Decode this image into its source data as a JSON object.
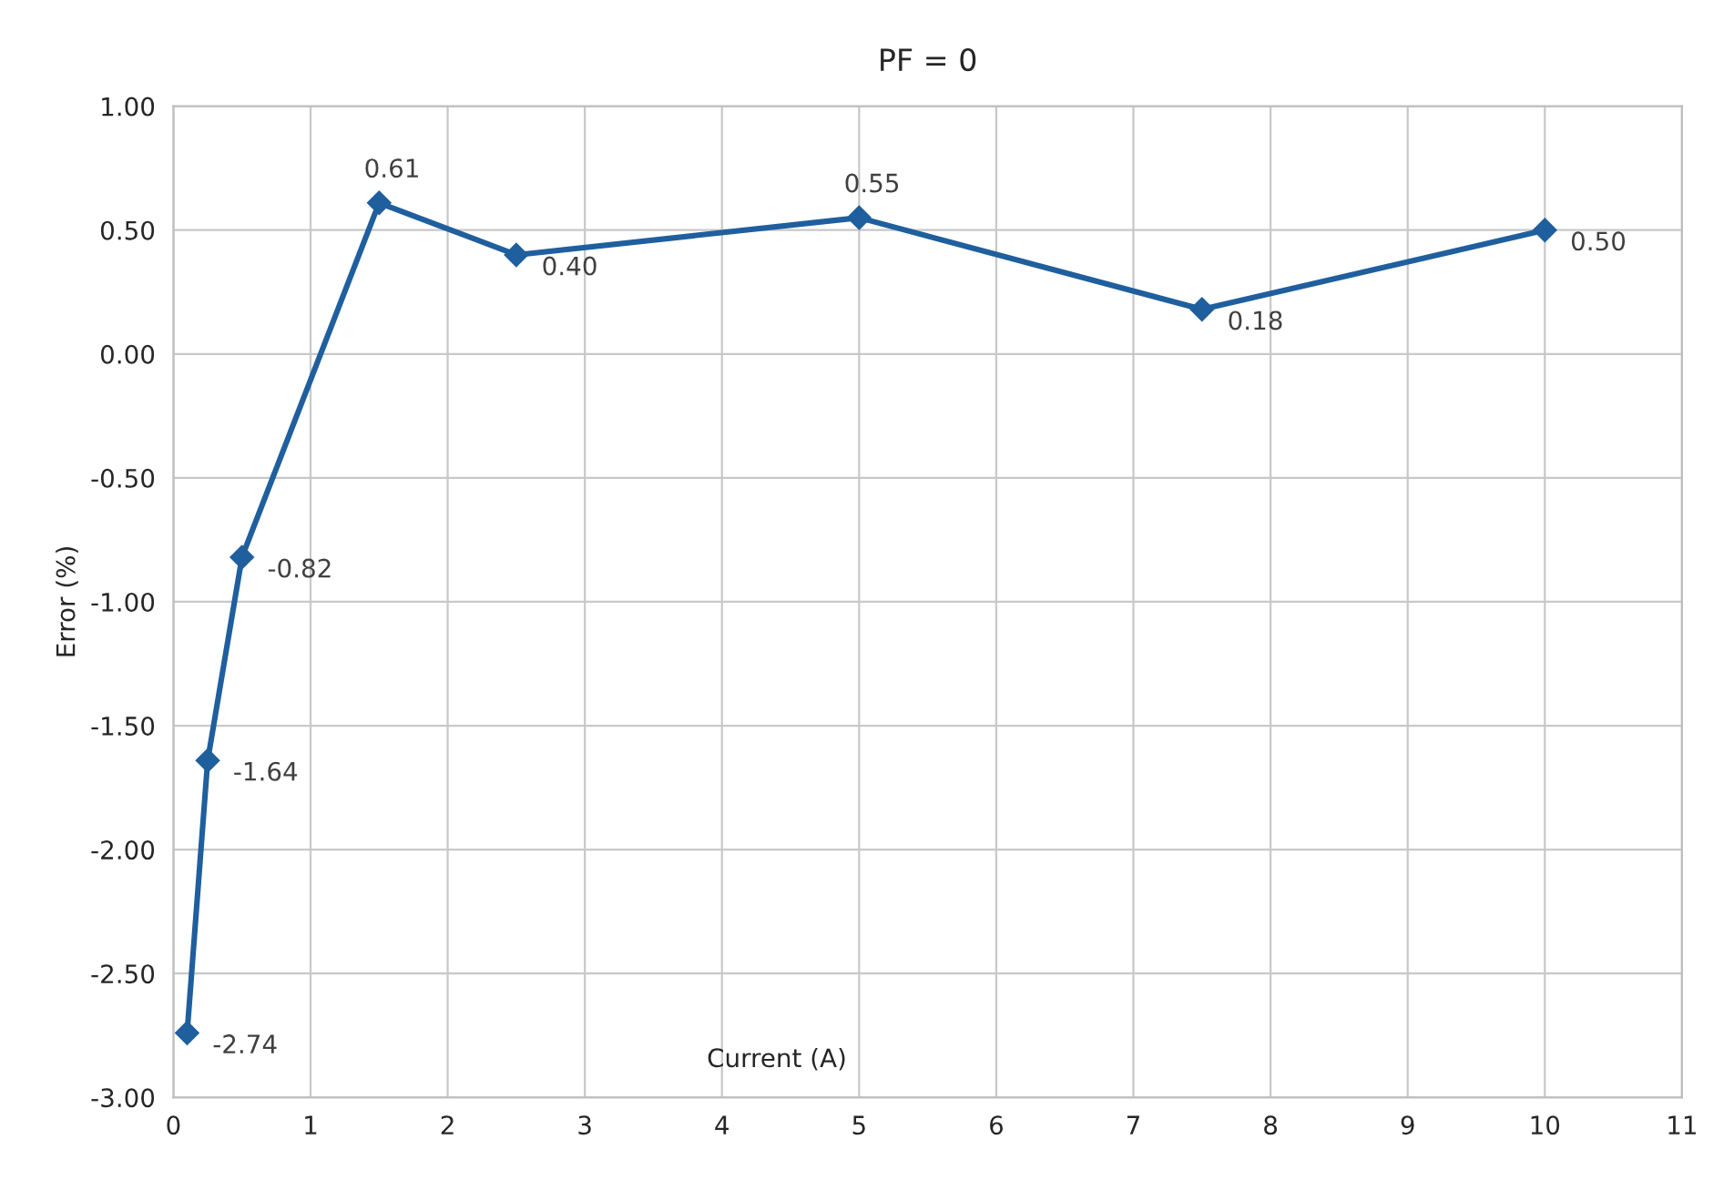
{
  "chart_data": {
    "type": "line",
    "title": "PF = 0",
    "xlabel": "Current (A)",
    "ylabel": "Error (%)",
    "x": [
      0.1,
      0.25,
      0.5,
      1.5,
      2.5,
      5,
      7.5,
      10
    ],
    "series": [
      {
        "color": "#1f5f9e",
        "values": [
          -2.74,
          -1.64,
          -0.82,
          0.61,
          0.4,
          0.55,
          0.18,
          0.5
        ],
        "value_labels": [
          "-2.74",
          "-1.64",
          "-0.82",
          "0.61",
          "0.40",
          "0.55",
          "0.18",
          "0.50"
        ]
      }
    ],
    "xlim": [
      0,
      11
    ],
    "xticks": [
      0,
      1,
      2,
      3,
      4,
      5,
      6,
      7,
      8,
      9,
      10,
      11
    ],
    "ylim": [
      -3,
      1
    ],
    "yticks": [
      {
        "value": -3,
        "label": "-3.00"
      },
      {
        "value": -2.5,
        "label": "-2.50"
      },
      {
        "value": -2,
        "label": "-2.00"
      },
      {
        "value": -1.5,
        "label": "-1.50"
      },
      {
        "value": -1,
        "label": "-1.00"
      },
      {
        "value": -0.5,
        "label": "-0.50"
      },
      {
        "value": 0,
        "label": "0.00"
      },
      {
        "value": 0.5,
        "label": "0.50"
      },
      {
        "value": 1,
        "label": "1.00"
      }
    ],
    "grid": true,
    "marker": "diamond",
    "line_style": "solid"
  }
}
